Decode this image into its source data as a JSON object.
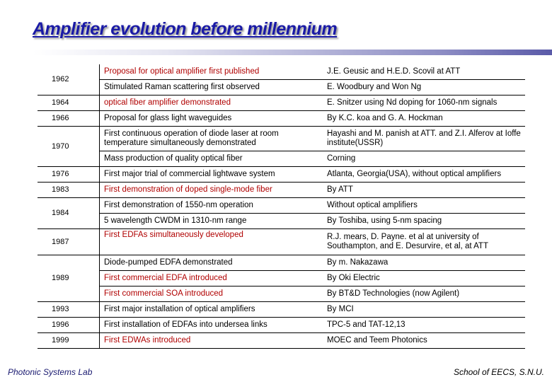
{
  "title": "Amplifier evolution before millennium",
  "rows": [
    {
      "year": "1962",
      "event": "Proposal for optical amplifier first published",
      "who": "J.E. Geusic and H.E.D. Scovil at ATT"
    },
    {
      "year": "",
      "event": "Stimulated Raman scattering first observed",
      "who": "E. Woodbury and Won Ng"
    },
    {
      "year": "1964",
      "event": "optical fiber amplifier demonstrated",
      "who": "E. Snitzer using Nd doping for 1060-nm signals"
    },
    {
      "year": "1966",
      "event": "Proposal for glass light waveguides",
      "who": "By K.C. koa and G. A. Hockman"
    },
    {
      "year": "1970",
      "event": "First continuous operation of diode laser at room temperature simultaneously demonstrated",
      "who": "Hayashi and M. panish at ATT. and Z.I. Alferov at Ioffe institute(USSR)"
    },
    {
      "year": "",
      "event": "Mass production of quality optical fiber",
      "who": "Corning"
    },
    {
      "year": "1976",
      "event": "First major trial of commercial lightwave system",
      "who": "Atlanta, Georgia(USA), without optical amplifiers"
    },
    {
      "year": "1983",
      "event": "First demonstration of doped single-mode fiber",
      "who": "By ATT"
    },
    {
      "year": "1984",
      "event": "First demonstration of 1550-nm operation",
      "who": "Without optical amplifiers"
    },
    {
      "year": "",
      "event": "5 wavelength CWDM in 1310-nm range",
      "who": "By Toshiba, using 5-nm spacing"
    },
    {
      "year": "1987",
      "event": "First EDFAs simultaneously developed",
      "who": "R.J. mears, D. Payne. et al at university of Southampton, and E. Desurvire, et al, at ATT"
    },
    {
      "year": "1989",
      "event": "Diode-pumped EDFA demonstrated",
      "who": "By m. Nakazawa"
    },
    {
      "year": "",
      "event": "First commercial EDFA introduced",
      "who": "By Oki Electric"
    },
    {
      "year": "",
      "event": "First commercial SOA introduced",
      "who": "By BT&D Technologies (now Agilent)"
    },
    {
      "year": "1993",
      "event": "First major installation of optical amplifiers",
      "who": "By MCI"
    },
    {
      "year": "1996",
      "event": "First installation of EDFAs into undersea links",
      "who": "TPC-5 and TAT-12,13"
    },
    {
      "year": "1999",
      "event": "First EDWAs introduced",
      "who": "MOEC and Teem Photonics"
    }
  ],
  "footer": {
    "left": "Photonic Systems Lab",
    "right": "School of EECS, S.N.U."
  },
  "colors": {
    "title": "#1a1aa6",
    "highlight_text": "#b00000"
  }
}
